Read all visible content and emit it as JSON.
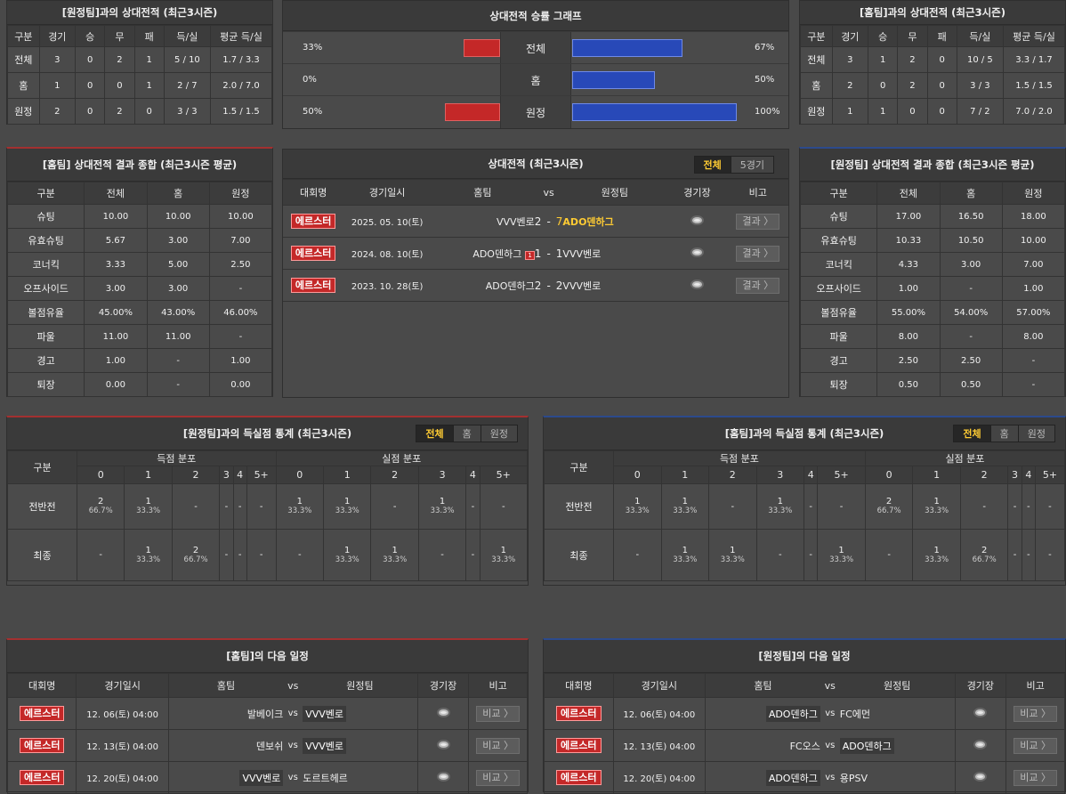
{
  "h2h_away": {
    "title": "[원정팀]과의 상대전적 (최근3시즌)",
    "headers": [
      "구분",
      "경기",
      "승",
      "무",
      "패",
      "득/실",
      "평균 득/실"
    ],
    "rows": [
      [
        "전체",
        "3",
        "0",
        "2",
        "1",
        "5 / 10",
        "1.7 / 3.3"
      ],
      [
        "홈",
        "1",
        "0",
        "0",
        "1",
        "2 / 7",
        "2.0 / 7.0"
      ],
      [
        "원정",
        "2",
        "0",
        "2",
        "0",
        "3 / 3",
        "1.5 / 1.5"
      ]
    ]
  },
  "graph": {
    "title": "상대전적 승률 그래프",
    "rows": [
      {
        "left": "33%",
        "label": "전체",
        "right": "67%",
        "lv": 33,
        "rv": 67
      },
      {
        "left": "0%",
        "label": "홈",
        "right": "50%",
        "lv": 0,
        "rv": 50
      },
      {
        "left": "50%",
        "label": "원정",
        "right": "100%",
        "lv": 50,
        "rv": 100
      }
    ]
  },
  "h2h_home": {
    "title": "[홈팀]과의 상대전적 (최근3시즌)",
    "headers": [
      "구분",
      "경기",
      "승",
      "무",
      "패",
      "득/실",
      "평균 득/실"
    ],
    "rows": [
      [
        "전체",
        "3",
        "1",
        "2",
        "0",
        "10 / 5",
        "3.3 / 1.7"
      ],
      [
        "홈",
        "2",
        "0",
        "2",
        "0",
        "3 / 3",
        "1.5 / 1.5"
      ],
      [
        "원정",
        "1",
        "1",
        "0",
        "0",
        "7 / 2",
        "7.0 / 2.0"
      ]
    ]
  },
  "home_summary": {
    "title": "[홈팀] 상대전적 결과 종합 (최근3시즌 평균)",
    "headers": [
      "구분",
      "전체",
      "홈",
      "원정"
    ],
    "rows": [
      [
        "슈팅",
        "10.00",
        "10.00",
        "10.00"
      ],
      [
        "유효슈팅",
        "5.67",
        "3.00",
        "7.00"
      ],
      [
        "코너킥",
        "3.33",
        "5.00",
        "2.50"
      ],
      [
        "오프사이드",
        "3.00",
        "3.00",
        "-"
      ],
      [
        "볼점유율",
        "45.00%",
        "43.00%",
        "46.00%"
      ],
      [
        "파울",
        "11.00",
        "11.00",
        "-"
      ],
      [
        "경고",
        "1.00",
        "-",
        "1.00"
      ],
      [
        "퇴장",
        "0.00",
        "-",
        "0.00"
      ]
    ]
  },
  "matches": {
    "title": "상대전적 (최근3시즌)",
    "tabs": [
      "전체",
      "5경기"
    ],
    "headers": [
      "대회명",
      "경기일시",
      "홈팀",
      "vs",
      "원정팀",
      "경기장",
      "비고"
    ],
    "rows": [
      {
        "league": "에르스터",
        "date": "2025. 05. 10(토)",
        "home": "VVV벤로",
        "hs": "2",
        "as": "7",
        "away": "ADO덴하그",
        "card": "",
        "btn": "결과 〉"
      },
      {
        "league": "에르스터",
        "date": "2024. 08. 10(토)",
        "home": "ADO덴하그",
        "hs": "1",
        "as": "1",
        "away": "VVV벤로",
        "card": "1",
        "btn": "결과 〉"
      },
      {
        "league": "에르스터",
        "date": "2023. 10. 28(토)",
        "home": "ADO덴하그",
        "hs": "2",
        "as": "2",
        "away": "VVV벤로",
        "card": "",
        "btn": "결과 〉"
      }
    ]
  },
  "away_summary": {
    "title": "[원정팀] 상대전적 결과 종합 (최근3시즌 평균)",
    "headers": [
      "구분",
      "전체",
      "홈",
      "원정"
    ],
    "rows": [
      [
        "슈팅",
        "17.00",
        "16.50",
        "18.00"
      ],
      [
        "유효슈팅",
        "10.33",
        "10.50",
        "10.00"
      ],
      [
        "코너킥",
        "4.33",
        "3.00",
        "7.00"
      ],
      [
        "오프사이드",
        "1.00",
        "-",
        "1.00"
      ],
      [
        "볼점유율",
        "55.00%",
        "54.00%",
        "57.00%"
      ],
      [
        "파울",
        "8.00",
        "-",
        "8.00"
      ],
      [
        "경고",
        "2.50",
        "2.50",
        "-"
      ],
      [
        "퇴장",
        "0.50",
        "0.50",
        "-"
      ]
    ]
  },
  "goals_away": {
    "title": "[원정팀]과의 득실점 통계 (최근3시즌)",
    "tabs": [
      "전체",
      "홈",
      "원정"
    ],
    "col0": "구분",
    "g1": "득점 분포",
    "g2": "실점 분포",
    "cols": [
      "0",
      "1",
      "2",
      "3",
      "4",
      "5+",
      "0",
      "1",
      "2",
      "3",
      "4",
      "5+"
    ],
    "rows": [
      {
        "label": "전반전",
        "cells": [
          [
            "2",
            "66.7%"
          ],
          [
            "1",
            "33.3%"
          ],
          [
            "-",
            ""
          ],
          [
            "-",
            ""
          ],
          [
            "-",
            ""
          ],
          [
            "-",
            ""
          ],
          [
            "1",
            "33.3%"
          ],
          [
            "1",
            "33.3%"
          ],
          [
            "-",
            ""
          ],
          [
            "1",
            "33.3%"
          ],
          [
            "-",
            ""
          ],
          [
            "-",
            ""
          ]
        ]
      },
      {
        "label": "최종",
        "cells": [
          [
            "-",
            ""
          ],
          [
            "1",
            "33.3%"
          ],
          [
            "2",
            "66.7%"
          ],
          [
            "-",
            ""
          ],
          [
            "-",
            ""
          ],
          [
            "-",
            ""
          ],
          [
            "-",
            ""
          ],
          [
            "1",
            "33.3%"
          ],
          [
            "1",
            "33.3%"
          ],
          [
            "-",
            ""
          ],
          [
            "-",
            ""
          ],
          [
            "1",
            "33.3%"
          ]
        ]
      }
    ]
  },
  "goals_home": {
    "title": "[홈팀]과의 득실점 통계 (최근3시즌)",
    "tabs": [
      "전체",
      "홈",
      "원정"
    ],
    "col0": "구분",
    "g1": "득점 분포",
    "g2": "실점 분포",
    "cols": [
      "0",
      "1",
      "2",
      "3",
      "4",
      "5+",
      "0",
      "1",
      "2",
      "3",
      "4",
      "5+"
    ],
    "rows": [
      {
        "label": "전반전",
        "cells": [
          [
            "1",
            "33.3%"
          ],
          [
            "1",
            "33.3%"
          ],
          [
            "-",
            ""
          ],
          [
            "1",
            "33.3%"
          ],
          [
            "-",
            ""
          ],
          [
            "-",
            ""
          ],
          [
            "2",
            "66.7%"
          ],
          [
            "1",
            "33.3%"
          ],
          [
            "-",
            ""
          ],
          [
            "-",
            ""
          ],
          [
            "-",
            ""
          ],
          [
            "-",
            ""
          ]
        ]
      },
      {
        "label": "최종",
        "cells": [
          [
            "-",
            ""
          ],
          [
            "1",
            "33.3%"
          ],
          [
            "1",
            "33.3%"
          ],
          [
            "-",
            ""
          ],
          [
            "-",
            ""
          ],
          [
            "1",
            "33.3%"
          ],
          [
            "-",
            ""
          ],
          [
            "1",
            "33.3%"
          ],
          [
            "2",
            "66.7%"
          ],
          [
            "-",
            ""
          ],
          [
            "-",
            ""
          ],
          [
            "-",
            ""
          ]
        ]
      }
    ]
  },
  "next_home": {
    "title": "[홈팀]의 다음 일정",
    "headers": [
      "대회명",
      "경기일시",
      "홈팀",
      "vs",
      "원정팀",
      "경기장",
      "비고"
    ],
    "rows": [
      {
        "league": "에르스터",
        "date": "12. 06(토) 04:00",
        "home": "발베이크",
        "away": "VVV벤로",
        "hl": false,
        "al": true,
        "btn": "비교 〉"
      },
      {
        "league": "에르스터",
        "date": "12. 13(토) 04:00",
        "home": "덴보쉬",
        "away": "VVV벤로",
        "hl": false,
        "al": true,
        "btn": "비교 〉"
      },
      {
        "league": "에르스터",
        "date": "12. 20(토) 04:00",
        "home": "VVV벤로",
        "away": "도르트헤르",
        "hl": true,
        "al": false,
        "btn": "비교 〉"
      }
    ]
  },
  "next_away": {
    "title": "[원정팀]의 다음 일정",
    "headers": [
      "대회명",
      "경기일시",
      "홈팀",
      "vs",
      "원정팀",
      "경기장",
      "비고"
    ],
    "rows": [
      {
        "league": "에르스터",
        "date": "12. 06(토) 04:00",
        "home": "ADO덴하그",
        "away": "FC에먼",
        "hl": true,
        "al": false,
        "btn": "비교 〉"
      },
      {
        "league": "에르스터",
        "date": "12. 13(토) 04:00",
        "home": "FC오스",
        "away": "ADO덴하그",
        "hl": false,
        "al": true,
        "btn": "비교 〉"
      },
      {
        "league": "에르스터",
        "date": "12. 20(토) 04:00",
        "home": "ADO덴하그",
        "away": "용PSV",
        "hl": true,
        "al": false,
        "btn": "비교 〉"
      }
    ]
  }
}
